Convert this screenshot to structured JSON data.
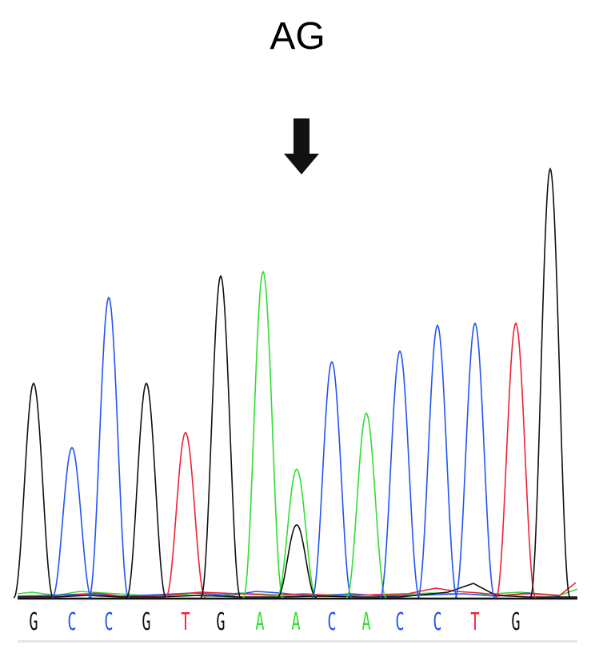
{
  "title": "AG",
  "colors": {
    "A": "#33dd33",
    "C": "#2255ee",
    "G": "#111111",
    "T": "#ee2233"
  },
  "chart_data": {
    "type": "line",
    "title": "AG",
    "sequence": [
      "G",
      "C",
      "C",
      "G",
      "T",
      "G",
      "A",
      "A",
      "C",
      "A",
      "C",
      "C",
      "T",
      "G"
    ],
    "peaks": [
      {
        "base": "G",
        "pos": 1,
        "height": 100
      },
      {
        "base": "C",
        "pos": 2,
        "height": 70
      },
      {
        "base": "C",
        "pos": 3,
        "height": 140
      },
      {
        "base": "G",
        "pos": 4,
        "height": 100
      },
      {
        "base": "T",
        "pos": 5,
        "height": 77
      },
      {
        "base": "G",
        "pos": 6,
        "height": 150
      },
      {
        "base": "A",
        "pos": 7,
        "height": 152
      },
      {
        "base": "A",
        "pos": 8,
        "height": 60
      },
      {
        "base": "G",
        "pos": 8,
        "height": 34
      },
      {
        "base": "C",
        "pos": 9,
        "height": 110
      },
      {
        "base": "A",
        "pos": 10,
        "height": 86
      },
      {
        "base": "C",
        "pos": 11,
        "height": 115
      },
      {
        "base": "C",
        "pos": 12,
        "height": 127
      },
      {
        "base": "C",
        "pos": 13,
        "height": 128
      },
      {
        "base": "T",
        "pos": 14,
        "height": 128
      },
      {
        "base": "G",
        "pos": 15,
        "height": 200
      }
    ],
    "arrow_at_pos": 8,
    "ylim": [
      0,
      210
    ]
  }
}
